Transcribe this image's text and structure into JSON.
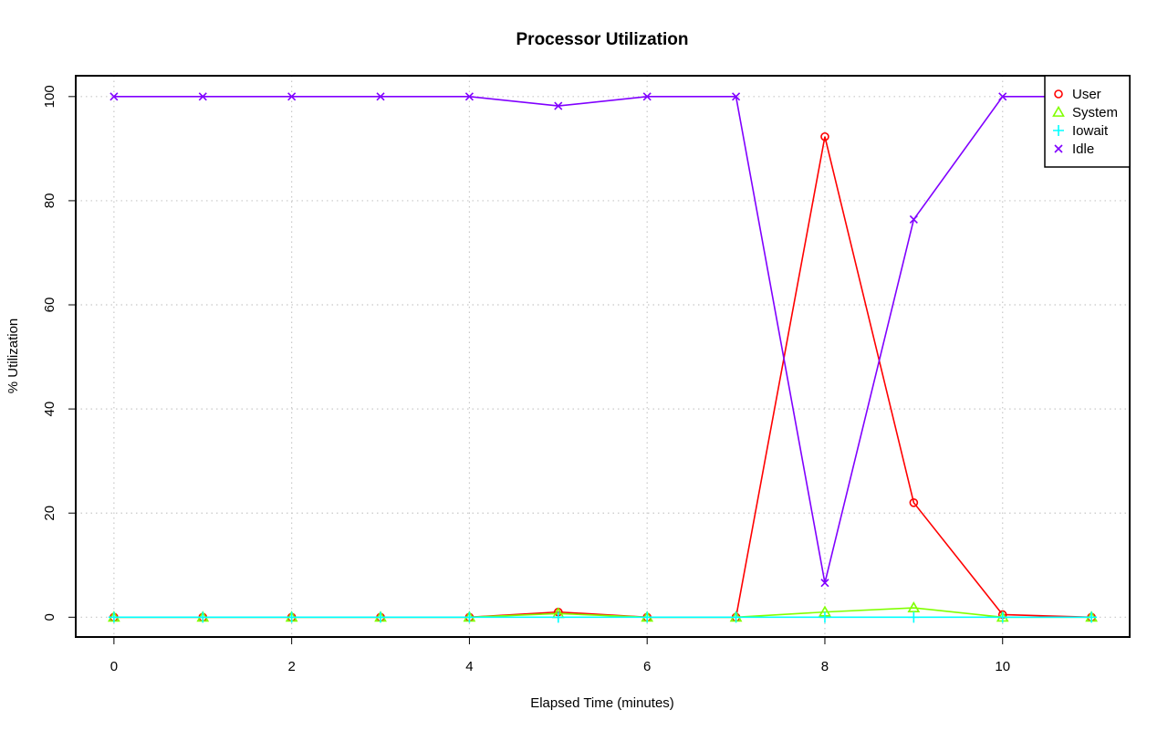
{
  "chart_data": {
    "type": "line",
    "title": "Processor Utilization",
    "xlabel": "Elapsed Time (minutes)",
    "ylabel": "% Utilization",
    "x": [
      0,
      1,
      2,
      3,
      4,
      5,
      6,
      7,
      8,
      9,
      10,
      11
    ],
    "xlim": [
      -0.43,
      11.43
    ],
    "ylim": [
      -3.8,
      104
    ],
    "xticks": [
      0,
      2,
      4,
      6,
      8,
      10
    ],
    "yticks": [
      0,
      20,
      40,
      60,
      80,
      100
    ],
    "grid": true,
    "legend_position": "top-right",
    "series": [
      {
        "name": "User",
        "color": "#ff0000",
        "marker": "circle",
        "values": [
          0,
          0,
          0,
          0,
          0,
          1,
          0,
          0,
          92.3,
          22,
          0.5,
          0
        ]
      },
      {
        "name": "System",
        "color": "#80ff00",
        "marker": "triangle",
        "values": [
          0,
          0,
          0,
          0,
          0,
          0.7,
          0,
          0,
          1,
          1.8,
          0,
          0
        ]
      },
      {
        "name": "Iowait",
        "color": "#00ffff",
        "marker": "plus",
        "values": [
          0,
          0,
          0,
          0,
          0,
          0,
          0,
          0,
          0,
          0,
          0,
          0
        ]
      },
      {
        "name": "Idle",
        "color": "#8000ff",
        "marker": "cross",
        "values": [
          100,
          100,
          100,
          100,
          100,
          98.2,
          100,
          100,
          6.6,
          76.4,
          100,
          100
        ]
      }
    ]
  }
}
